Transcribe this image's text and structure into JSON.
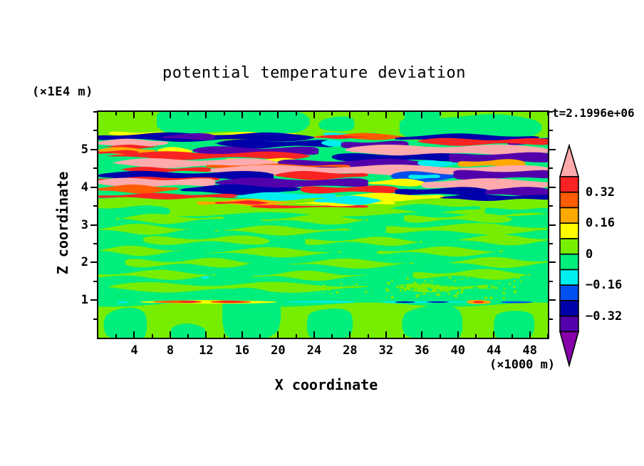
{
  "figure": {
    "title": "potential temperature deviation",
    "time_label": "t=2.1996e+06",
    "z_unit_label": "(×1E4 m)",
    "x_unit_label": "(×1000 m)",
    "x_axis_label": "X coordinate",
    "z_axis_label": "Z coordinate"
  },
  "x_axis": {
    "range": [
      0,
      50
    ],
    "major_ticks": [
      4,
      8,
      12,
      16,
      20,
      24,
      28,
      32,
      36,
      40,
      44,
      48
    ],
    "minor_step": 2
  },
  "z_axis": {
    "range": [
      0,
      6
    ],
    "major_ticks": [
      1,
      2,
      3,
      4,
      5
    ],
    "minor_step": 0.5
  },
  "palette": {
    "pink": "#ffaaac",
    "red": "#fa2323",
    "orangered": "#ff5c00",
    "orange": "#ffa800",
    "yellow": "#fffc00",
    "chartreuse": "#77ee00",
    "springgreen": "#00ee7c",
    "cyan": "#00eeee",
    "blue": "#0050f0",
    "navy": "#0000aa",
    "purple": "#5200ac",
    "magenta": "#8800aa"
  },
  "colorbar": {
    "segments": [
      "red",
      "orangered",
      "orange",
      "yellow",
      "chartreuse",
      "springgreen",
      "cyan",
      "blue",
      "navy",
      "purple"
    ],
    "over_color": "pink",
    "under_color": "magenta",
    "labels": [
      {
        "text": "0.32",
        "boundary": 1
      },
      {
        "text": "0.16",
        "boundary": 3
      },
      {
        "text": "0",
        "boundary": 5
      },
      {
        "text": "−0.16",
        "boundary": 7
      },
      {
        "text": "−0.32",
        "boundary": 9
      }
    ]
  },
  "chart_data": {
    "type": "heatmap",
    "subtype": "filled_contour",
    "title": "potential temperature deviation",
    "xlabel": "X coordinate (×1000 m)",
    "ylabel": "Z coordinate (×1E4 m)",
    "time_annotation": "t=2.1996e+06",
    "x_range": [
      0,
      50
    ],
    "z_range": [
      0,
      6
    ],
    "contour_interval": 0.08,
    "labeled_levels": [
      0.32,
      0.16,
      0,
      -0.16,
      -0.32
    ],
    "level_range": [
      -0.4,
      0.4
    ],
    "background_value_color": "springgreen",
    "description": "Turbulent layered band of strong +/- deviations between z=3.5 and z=5.4, mostly near-zero (greens) elsewhere, thin perturbation streak near z=1.",
    "bands": [
      [
        -0.3,
        50.3,
        6.1,
        5.28,
        "chartreuse",
        0,
        2.5,
        260,
        0.5
      ],
      [
        6.5,
        23.5,
        6.1,
        5.42,
        "springgreen",
        0.18,
        3,
        150,
        1.2
      ],
      [
        24.5,
        28.5,
        5.88,
        5.45,
        "springgreen",
        0.3,
        2,
        110,
        2.6
      ],
      [
        33.5,
        49.3,
        5.9,
        5.3,
        "springgreen",
        0.18,
        2.5,
        150,
        0.2
      ],
      [
        34,
        38.2,
        6.1,
        5.75,
        "springgreen",
        0.3,
        1.5,
        90,
        1.0
      ],
      [
        1.2,
        7.5,
        5.47,
        5.39,
        "yellow",
        0.4,
        1.2,
        80,
        3.4
      ],
      [
        11.5,
        22,
        5.45,
        5.37,
        "yellow",
        0.4,
        1.2,
        80,
        1.1
      ],
      [
        25,
        31,
        5.44,
        5.37,
        "cyan",
        0.4,
        1.2,
        70,
        0.9
      ],
      [
        -0.3,
        24,
        5.42,
        5.24,
        "navy",
        0.12,
        2,
        140,
        0.3
      ],
      [
        7,
        13,
        5.41,
        5.26,
        "purple",
        0.3,
        1.6,
        100,
        1.8
      ],
      [
        24,
        34,
        5.41,
        5.28,
        "orangered",
        0.25,
        1.6,
        110,
        2.1
      ],
      [
        24.5,
        30,
        5.37,
        5.3,
        "red",
        0.35,
        1,
        70,
        0.6
      ],
      [
        33,
        49,
        5.39,
        5.22,
        "navy",
        0.15,
        2,
        150,
        2.4
      ],
      [
        45.5,
        50.3,
        5.31,
        5.12,
        "purple",
        0.15,
        1.6,
        100,
        1.6
      ],
      [
        -0.3,
        7.8,
        5.26,
        5.08,
        "pink",
        0.18,
        1.5,
        90,
        2.0
      ],
      [
        0.2,
        7.2,
        5.11,
        5.04,
        "red",
        0.4,
        1,
        70,
        1.0
      ],
      [
        13,
        26.5,
        5.24,
        5.06,
        "navy",
        0.28,
        2,
        120,
        0.6
      ],
      [
        24.8,
        27.6,
        5.23,
        5.1,
        "cyan",
        0.4,
        1.2,
        60,
        2.2
      ],
      [
        27,
        34.5,
        5.22,
        5.04,
        "purple",
        0.28,
        1.8,
        100,
        2.9
      ],
      [
        35.5,
        50.3,
        5.28,
        5.13,
        "red",
        0.18,
        1.8,
        130,
        0.1
      ],
      [
        27.5,
        50.3,
        5.1,
        4.87,
        "pink",
        0.12,
        2,
        160,
        1.4
      ],
      [
        -0.3,
        6.5,
        5.04,
        4.89,
        "orange",
        0.25,
        1.5,
        80,
        2.5
      ],
      [
        -0.3,
        4.5,
        4.97,
        4.88,
        "red",
        0.3,
        1,
        60,
        0.4
      ],
      [
        6.5,
        10.5,
        5.04,
        4.88,
        "yellow",
        0.35,
        1.4,
        70,
        1.9
      ],
      [
        10.5,
        24.5,
        5.06,
        4.86,
        "purple",
        0.18,
        2,
        130,
        3.0
      ],
      [
        26,
        40.5,
        4.88,
        4.69,
        "navy",
        0.22,
        2,
        140,
        1.6
      ],
      [
        39,
        50.3,
        4.9,
        4.67,
        "purple",
        0.13,
        2,
        140,
        2.2
      ],
      [
        0.8,
        23.5,
        4.92,
        4.76,
        "red",
        0.22,
        2,
        150,
        0.8
      ],
      [
        14,
        22,
        4.76,
        4.66,
        "yellow",
        0.4,
        1.4,
        80,
        2.8
      ],
      [
        1.5,
        20,
        4.74,
        4.54,
        "pink",
        0.22,
        2,
        140,
        1.5
      ],
      [
        20,
        36.5,
        4.72,
        4.49,
        "purple",
        0.16,
        2.2,
        150,
        0.2
      ],
      [
        35.5,
        40,
        4.7,
        4.55,
        "cyan",
        0.35,
        1.5,
        70,
        1.3
      ],
      [
        40,
        47.5,
        4.72,
        4.54,
        "orange",
        0.28,
        1.8,
        90,
        2.0
      ],
      [
        12,
        28,
        4.6,
        4.51,
        "orangered",
        0.4,
        1.2,
        100,
        1.7
      ],
      [
        11.5,
        50.3,
        4.56,
        4.33,
        "pink",
        0.12,
        2.2,
        180,
        2.7
      ],
      [
        2.5,
        12.5,
        4.52,
        4.4,
        "red",
        0.3,
        1.5,
        90,
        0.5
      ],
      [
        -0.3,
        19.5,
        4.4,
        4.2,
        "navy",
        0.13,
        2,
        150,
        2.3
      ],
      [
        19.5,
        30,
        4.4,
        4.22,
        "red",
        0.28,
        1.8,
        110,
        1.0
      ],
      [
        32.5,
        39.8,
        4.4,
        4.16,
        "blue",
        0.28,
        1.8,
        100,
        2.5
      ],
      [
        34.5,
        38,
        4.34,
        4.22,
        "cyan",
        0.4,
        1,
        50,
        0.7
      ],
      [
        39.5,
        50.3,
        4.44,
        4.22,
        "purple",
        0.13,
        2,
        140,
        1.2
      ],
      [
        -0.3,
        13.5,
        4.26,
        4.17,
        "red",
        0.35,
        1,
        90,
        0.3
      ],
      [
        -0.3,
        13,
        4.22,
        4.02,
        "pink",
        0.16,
        1.8,
        120,
        2.9
      ],
      [
        13,
        30,
        4.22,
        4.0,
        "purple",
        0.16,
        2,
        150,
        1.9
      ],
      [
        30,
        36.5,
        4.2,
        4.04,
        "yellow",
        0.35,
        1.5,
        80,
        2.4
      ],
      [
        36,
        50.3,
        4.2,
        3.94,
        "pink",
        0.12,
        2,
        150,
        0.6
      ],
      [
        -0.3,
        9,
        4.04,
        3.86,
        "orangered",
        0.25,
        1.6,
        90,
        1.4
      ],
      [
        9,
        22.5,
        4.04,
        3.83,
        "navy",
        0.22,
        2,
        130,
        2.1
      ],
      [
        22.5,
        33.5,
        4.02,
        3.85,
        "red",
        0.28,
        1.8,
        110,
        0.9
      ],
      [
        33,
        43.5,
        3.98,
        3.79,
        "navy",
        0.28,
        1.8,
        120,
        2.7
      ],
      [
        43,
        50.3,
        3.98,
        3.77,
        "purple",
        0.16,
        1.6,
        110,
        1.6
      ],
      [
        -0.3,
        50.3,
        3.74,
        3.28,
        "chartreuse",
        0,
        3,
        220,
        2.0
      ],
      [
        -0.3,
        15.5,
        3.82,
        3.7,
        "red",
        0.28,
        1.4,
        110,
        0.2
      ],
      [
        15,
        26.5,
        3.84,
        3.67,
        "cyan",
        0.28,
        1.6,
        100,
        2.2
      ],
      [
        26,
        38.5,
        3.82,
        3.65,
        "yellow",
        0.28,
        1.6,
        110,
        1.1
      ],
      [
        38,
        50.3,
        3.79,
        3.66,
        "navy",
        0.16,
        1.4,
        100,
        2.8
      ],
      [
        11,
        22,
        3.66,
        3.52,
        "orange",
        0.35,
        1.8,
        90,
        2.5
      ],
      [
        13,
        19,
        3.63,
        3.55,
        "red",
        0.4,
        1,
        60,
        1.3
      ],
      [
        17,
        30,
        3.52,
        3.45,
        "red",
        0.4,
        1,
        140,
        0.9
      ],
      [
        21.5,
        33,
        3.62,
        3.52,
        "yellow",
        0.4,
        1.4,
        90,
        0.8
      ],
      [
        24,
        31.5,
        3.75,
        3.55,
        "cyan",
        0.35,
        1.4,
        80,
        2.0
      ],
      [
        32.5,
        42.5,
        3.52,
        3.35,
        "springgreen",
        0.25,
        2,
        100,
        1.5
      ],
      [
        -0.3,
        8,
        3.48,
        3.28,
        "springgreen",
        0.15,
        2,
        100,
        0.4
      ],
      [
        43,
        50.3,
        3.44,
        3.28,
        "springgreen",
        0.2,
        2,
        100,
        2.3
      ],
      [
        2,
        14,
        3.24,
        3.08,
        "chartreuse",
        0.25,
        3,
        120,
        0.7
      ],
      [
        18,
        30,
        3.22,
        3.06,
        "chartreuse",
        0.25,
        3,
        130,
        2.3
      ],
      [
        34,
        46,
        3.25,
        3.09,
        "chartreuse",
        0.25,
        3,
        120,
        1.5
      ],
      [
        -0.3,
        10,
        2.97,
        2.79,
        "chartreuse",
        0.2,
        3,
        120,
        1.9
      ],
      [
        13,
        28,
        2.93,
        2.77,
        "chartreuse",
        0.25,
        3,
        140,
        0.3
      ],
      [
        32,
        50.3,
        2.99,
        2.79,
        "chartreuse",
        0.12,
        3,
        160,
        2.7
      ],
      [
        5,
        19,
        2.67,
        2.51,
        "chartreuse",
        0.25,
        3,
        130,
        1.2
      ],
      [
        23,
        36,
        2.63,
        2.49,
        "chartreuse",
        0.25,
        3,
        120,
        2.9
      ],
      [
        40,
        50.3,
        2.69,
        2.51,
        "chartreuse",
        0.15,
        3,
        120,
        0.5
      ],
      [
        -0.3,
        9,
        2.39,
        2.23,
        "chartreuse",
        0.2,
        3,
        110,
        2.2
      ],
      [
        12,
        27,
        2.35,
        2.19,
        "chartreuse",
        0.25,
        3,
        150,
        1.0
      ],
      [
        31,
        45,
        2.37,
        2.21,
        "chartreuse",
        0.25,
        3,
        130,
        0.1
      ],
      [
        3,
        17,
        2.07,
        1.91,
        "chartreuse",
        0.25,
        3,
        120,
        2.6
      ],
      [
        21,
        35,
        2.05,
        1.89,
        "chartreuse",
        0.25,
        3,
        140,
        1.7
      ],
      [
        39,
        50.3,
        2.09,
        1.91,
        "chartreuse",
        0.15,
        3,
        120,
        0.9
      ],
      [
        -0.3,
        13,
        1.75,
        1.59,
        "chartreuse",
        0.2,
        3,
        130,
        0.6
      ],
      [
        17,
        30,
        1.73,
        1.57,
        "chartreuse",
        0.25,
        3,
        120,
        2.1
      ],
      [
        35,
        48,
        1.77,
        1.59,
        "chartreuse",
        0.25,
        3,
        120,
        1.4
      ],
      [
        1,
        30,
        1.43,
        1.25,
        "chartreuse",
        0.15,
        3,
        180,
        2.4
      ],
      [
        33,
        44,
        1.41,
        1.25,
        "chartreuse",
        0.25,
        2.5,
        120,
        0.2
      ],
      [
        11.5,
        12.3,
        1.64,
        1.57,
        "cyan",
        0.4,
        0.5,
        50,
        0
      ],
      [
        -0.3,
        50.3,
        0.88,
        -0.1,
        "chartreuse",
        0,
        3,
        240,
        1.1
      ],
      [
        0.6,
        5.4,
        0.78,
        -0.1,
        "springgreen",
        0.25,
        2,
        100,
        1.1
      ],
      [
        13.8,
        20.3,
        1.35,
        -0.1,
        "springgreen",
        0.22,
        2.5,
        120,
        2.0
      ],
      [
        23.2,
        28.3,
        0.8,
        -0.1,
        "springgreen",
        0.25,
        2,
        100,
        0.6
      ],
      [
        33.8,
        40.5,
        0.85,
        -0.1,
        "springgreen",
        0.22,
        2.5,
        110,
        1.8
      ],
      [
        44,
        48.5,
        0.75,
        -0.1,
        "springgreen",
        0.25,
        2,
        100,
        2.8
      ],
      [
        8,
        12,
        0.35,
        -0.1,
        "springgreen",
        0.3,
        1.5,
        80,
        1.5
      ],
      [
        2.0,
        3.3,
        0.97,
        0.92,
        "cyan",
        0.4,
        0.3,
        60,
        0
      ],
      [
        4.5,
        20,
        0.99,
        0.91,
        "yellow",
        0.3,
        0.4,
        200,
        0
      ],
      [
        6,
        11.5,
        0.985,
        0.92,
        "orangered",
        0.35,
        0.3,
        200,
        0
      ],
      [
        9,
        11,
        0.98,
        0.925,
        "red",
        0.4,
        0.2,
        200,
        0
      ],
      [
        12.5,
        17,
        0.985,
        0.925,
        "orangered",
        0.35,
        0.3,
        200,
        0
      ],
      [
        13.5,
        16,
        0.98,
        0.93,
        "red",
        0.4,
        0.2,
        200,
        0
      ],
      [
        20.5,
        28.5,
        0.975,
        0.925,
        "cyan",
        0.35,
        0.3,
        200,
        0
      ],
      [
        31.5,
        41,
        0.975,
        0.92,
        "cyan",
        0.3,
        0.3,
        200,
        0
      ],
      [
        33,
        35.3,
        0.968,
        0.928,
        "navy",
        0.4,
        0.2,
        200,
        0
      ],
      [
        36.5,
        39,
        0.968,
        0.928,
        "navy",
        0.4,
        0.2,
        200,
        0
      ],
      [
        41,
        43.7,
        1.0,
        0.9,
        "orange",
        0.35,
        0.5,
        90,
        0
      ],
      [
        41.7,
        42.9,
        0.975,
        0.925,
        "red",
        0.4,
        0.2,
        60,
        0
      ],
      [
        44.8,
        48.3,
        0.965,
        0.925,
        "blue",
        0.35,
        0.3,
        200,
        0
      ]
    ],
    "speckles": [
      {
        "x0": 32,
        "x1": 47,
        "z0": 1.05,
        "z1": 1.6,
        "n": 65,
        "color": "chartreuse",
        "seed": 11,
        "rmin": 0.8,
        "rmax": 2.4
      },
      {
        "x0": 33,
        "x1": 46,
        "z0": 1.08,
        "z1": 1.55,
        "n": 45,
        "color": "springgreen",
        "seed": 23,
        "rmin": 0.8,
        "rmax": 2.2
      },
      {
        "x0": 24,
        "x1": 31,
        "z0": 1.15,
        "z1": 1.45,
        "n": 18,
        "color": "chartreuse",
        "seed": 5,
        "rmin": 0.7,
        "rmax": 1.8
      }
    ]
  }
}
